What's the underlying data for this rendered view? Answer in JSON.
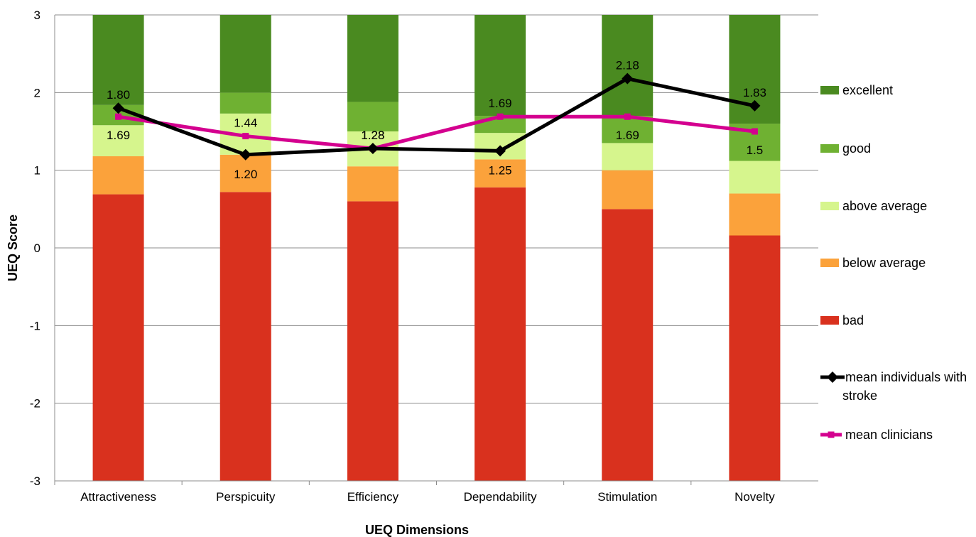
{
  "chart_data": {
    "type": "bar",
    "subtype": "stacked-bar-with-lines",
    "xlabel": "UEQ Dimensions",
    "ylabel": "UEQ Score",
    "ylim": [
      -3,
      3
    ],
    "yticks": [
      3,
      2,
      1,
      0,
      -1,
      -2,
      -3
    ],
    "grid": true,
    "legend_position": "right",
    "categories": [
      "Attractiveness",
      "Perspicuity",
      "Efficiency",
      "Dependability",
      "Stimulation",
      "Novelty"
    ],
    "stack_base": -3,
    "benchmark_bounds": {
      "bad": [
        0.69,
        0.72,
        0.6,
        0.78,
        0.5,
        0.16
      ],
      "below_average": [
        1.18,
        1.2,
        1.05,
        1.14,
        1.0,
        0.7
      ],
      "above_average": [
        1.58,
        1.73,
        1.5,
        1.48,
        1.35,
        1.12
      ],
      "good": [
        1.84,
        2.0,
        1.88,
        1.7,
        1.7,
        1.6
      ],
      "excellent": [
        3.0,
        3.0,
        3.0,
        3.0,
        3.0,
        3.0
      ]
    },
    "stack_series": [
      {
        "key": "bad",
        "name": "bad",
        "color": "#D9311E"
      },
      {
        "key": "below_average",
        "name": "below average",
        "color": "#FBA23B"
      },
      {
        "key": "above_average",
        "name": "above average",
        "color": "#D6F58D"
      },
      {
        "key": "good",
        "name": "good",
        "color": "#6FB132"
      },
      {
        "key": "excellent",
        "name": "excellent",
        "color": "#4A8A20"
      }
    ],
    "lines": [
      {
        "name": "mean individuals with stroke",
        "color": "#000000",
        "marker": "diamond",
        "values": [
          1.8,
          1.2,
          1.28,
          1.25,
          2.18,
          1.83
        ],
        "labels": [
          "1.80",
          "1.20",
          "1.28",
          "1.25",
          "2.18",
          "1.83"
        ]
      },
      {
        "name": "mean clinicians",
        "color": "#D4008F",
        "marker": "square",
        "values": [
          1.69,
          1.44,
          1.28,
          1.69,
          1.69,
          1.5
        ],
        "labels": [
          "1.69",
          "1.44",
          "1.28",
          "1.69",
          "1.69",
          "1.5"
        ]
      }
    ],
    "legend": [
      "excellent",
      "good",
      "above average",
      "below average",
      "bad",
      "mean individuals with\nstroke",
      "mean clinicians"
    ]
  }
}
